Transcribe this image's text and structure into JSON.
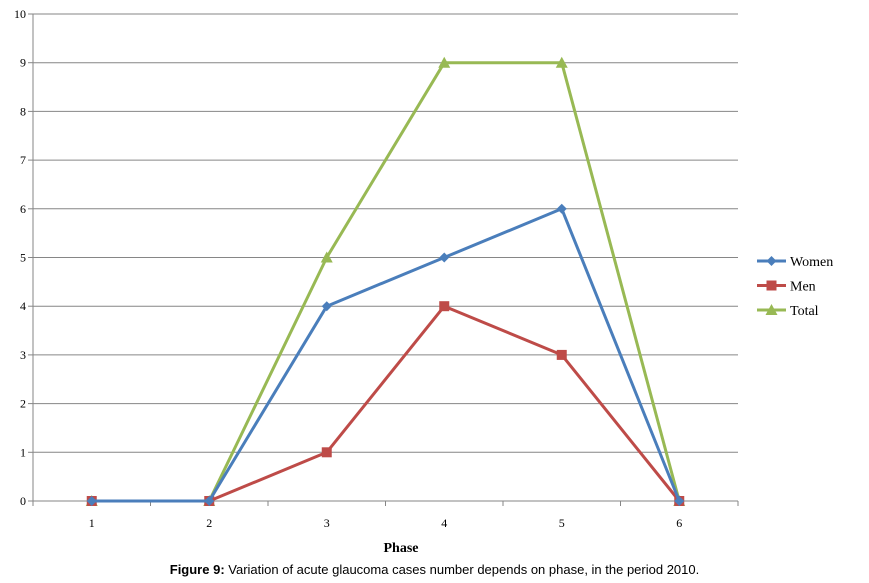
{
  "chart_data": {
    "type": "line",
    "title": "",
    "xlabel": "Phase",
    "ylabel": "",
    "categories": [
      "1",
      "2",
      "3",
      "4",
      "5",
      "6"
    ],
    "ylim": [
      0,
      10
    ],
    "yticks": [
      "0",
      "1",
      "2",
      "3",
      "4",
      "5",
      "6",
      "7",
      "8",
      "9",
      "10"
    ],
    "grid": true,
    "legend_position": "right",
    "series": [
      {
        "name": "Women",
        "values": [
          0,
          0,
          4,
          5,
          6,
          0
        ],
        "color": "#4a7ebb",
        "marker": "diamond"
      },
      {
        "name": "Men",
        "values": [
          0,
          0,
          1,
          4,
          3,
          0
        ],
        "color": "#be4b48",
        "marker": "square"
      },
      {
        "name": "Total",
        "values": [
          0,
          0,
          5,
          9,
          9,
          0
        ],
        "color": "#98b954",
        "marker": "triangle"
      }
    ]
  },
  "caption": {
    "label": "Figure 9:",
    "text": " Variation of acute glaucoma cases number depends on phase, in the period 2010."
  }
}
